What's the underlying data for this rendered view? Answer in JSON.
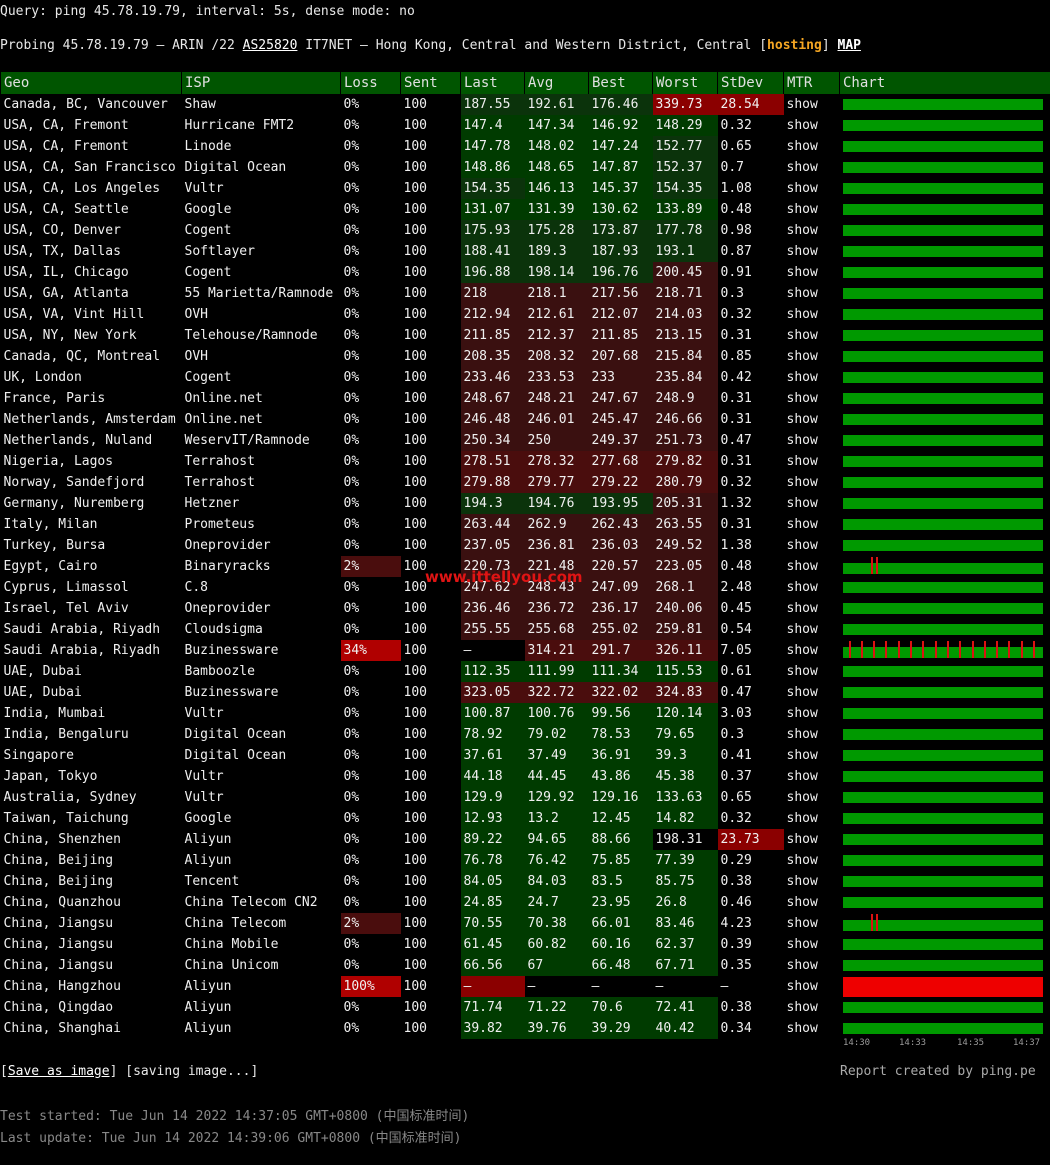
{
  "header": {
    "query": "Query: ping 45.78.19.79, interval: 5s, dense mode: no",
    "probe_prefix": "Probing 45.78.19.79 — ARIN /22 ",
    "asn": "AS25820",
    "probe_middle": " IT7NET — Hong Kong, Central and Western District, Central [",
    "tag": "hosting",
    "probe_close": "] ",
    "map_link": "MAP"
  },
  "columns": [
    "Geo",
    "ISP",
    "Loss",
    "Sent",
    "Last",
    "Avg",
    "Best",
    "Worst",
    "StDev",
    "MTR",
    "Chart"
  ],
  "rows": [
    {
      "geo": "Canada, BC, Vancouver",
      "isp": "Shaw",
      "loss": "0%",
      "sent": "100",
      "last": "187.55",
      "avg": "192.61",
      "best": "176.46",
      "worst": "339.73",
      "stdev": "28.54",
      "mtr": "show"
    },
    {
      "geo": "USA, CA, Fremont",
      "isp": "Hurricane FMT2",
      "loss": "0%",
      "sent": "100",
      "last": "147.4",
      "avg": "147.34",
      "best": "146.92",
      "worst": "148.29",
      "stdev": "0.32",
      "mtr": "show"
    },
    {
      "geo": "USA, CA, Fremont",
      "isp": "Linode",
      "loss": "0%",
      "sent": "100",
      "last": "147.78",
      "avg": "148.02",
      "best": "147.24",
      "worst": "152.77",
      "stdev": "0.65",
      "mtr": "show"
    },
    {
      "geo": "USA, CA, San Francisco",
      "isp": "Digital Ocean",
      "loss": "0%",
      "sent": "100",
      "last": "148.86",
      "avg": "148.65",
      "best": "147.87",
      "worst": "152.37",
      "stdev": "0.7",
      "mtr": "show"
    },
    {
      "geo": "USA, CA, Los Angeles",
      "isp": "Vultr",
      "loss": "0%",
      "sent": "100",
      "last": "154.35",
      "avg": "146.13",
      "best": "145.37",
      "worst": "154.35",
      "stdev": "1.08",
      "mtr": "show"
    },
    {
      "geo": "USA, CA, Seattle",
      "isp": "Google",
      "loss": "0%",
      "sent": "100",
      "last": "131.07",
      "avg": "131.39",
      "best": "130.62",
      "worst": "133.89",
      "stdev": "0.48",
      "mtr": "show"
    },
    {
      "geo": "USA, CO, Denver",
      "isp": "Cogent",
      "loss": "0%",
      "sent": "100",
      "last": "175.93",
      "avg": "175.28",
      "best": "173.87",
      "worst": "177.78",
      "stdev": "0.98",
      "mtr": "show"
    },
    {
      "geo": "USA, TX, Dallas",
      "isp": "Softlayer",
      "loss": "0%",
      "sent": "100",
      "last": "188.41",
      "avg": "189.3",
      "best": "187.93",
      "worst": "193.1",
      "stdev": "0.87",
      "mtr": "show"
    },
    {
      "geo": "USA, IL, Chicago",
      "isp": "Cogent",
      "loss": "0%",
      "sent": "100",
      "last": "196.88",
      "avg": "198.14",
      "best": "196.76",
      "worst": "200.45",
      "stdev": "0.91",
      "mtr": "show"
    },
    {
      "geo": "USA, GA, Atlanta",
      "isp": "55 Marietta/Ramnode",
      "loss": "0%",
      "sent": "100",
      "last": "218",
      "avg": "218.1",
      "best": "217.56",
      "worst": "218.71",
      "stdev": "0.3",
      "mtr": "show"
    },
    {
      "geo": "USA, VA, Vint Hill",
      "isp": "OVH",
      "loss": "0%",
      "sent": "100",
      "last": "212.94",
      "avg": "212.61",
      "best": "212.07",
      "worst": "214.03",
      "stdev": "0.32",
      "mtr": "show"
    },
    {
      "geo": "USA, NY, New York",
      "isp": "Telehouse/Ramnode",
      "loss": "0%",
      "sent": "100",
      "last": "211.85",
      "avg": "212.37",
      "best": "211.85",
      "worst": "213.15",
      "stdev": "0.31",
      "mtr": "show"
    },
    {
      "geo": "Canada, QC, Montreal",
      "isp": "OVH",
      "loss": "0%",
      "sent": "100",
      "last": "208.35",
      "avg": "208.32",
      "best": "207.68",
      "worst": "215.84",
      "stdev": "0.85",
      "mtr": "show"
    },
    {
      "geo": "UK, London",
      "isp": "Cogent",
      "loss": "0%",
      "sent": "100",
      "last": "233.46",
      "avg": "233.53",
      "best": "233",
      "worst": "235.84",
      "stdev": "0.42",
      "mtr": "show"
    },
    {
      "geo": "France, Paris",
      "isp": "Online.net",
      "loss": "0%",
      "sent": "100",
      "last": "248.67",
      "avg": "248.21",
      "best": "247.67",
      "worst": "248.9",
      "stdev": "0.31",
      "mtr": "show"
    },
    {
      "geo": "Netherlands, Amsterdam",
      "isp": "Online.net",
      "loss": "0%",
      "sent": "100",
      "last": "246.48",
      "avg": "246.01",
      "best": "245.47",
      "worst": "246.66",
      "stdev": "0.31",
      "mtr": "show"
    },
    {
      "geo": "Netherlands, Nuland",
      "isp": "WeservIT/Ramnode",
      "loss": "0%",
      "sent": "100",
      "last": "250.34",
      "avg": "250",
      "best": "249.37",
      "worst": "251.73",
      "stdev": "0.47",
      "mtr": "show"
    },
    {
      "geo": "Nigeria, Lagos",
      "isp": "Terrahost",
      "loss": "0%",
      "sent": "100",
      "last": "278.51",
      "avg": "278.32",
      "best": "277.68",
      "worst": "279.82",
      "stdev": "0.31",
      "mtr": "show"
    },
    {
      "geo": "Norway, Sandefjord",
      "isp": "Terrahost",
      "loss": "0%",
      "sent": "100",
      "last": "279.88",
      "avg": "279.77",
      "best": "279.22",
      "worst": "280.79",
      "stdev": "0.32",
      "mtr": "show"
    },
    {
      "geo": "Germany, Nuremberg",
      "isp": "Hetzner",
      "loss": "0%",
      "sent": "100",
      "last": "194.3",
      "avg": "194.76",
      "best": "193.95",
      "worst": "205.31",
      "stdev": "1.32",
      "mtr": "show"
    },
    {
      "geo": "Italy, Milan",
      "isp": "Prometeus",
      "loss": "0%",
      "sent": "100",
      "last": "263.44",
      "avg": "262.9",
      "best": "262.43",
      "worst": "263.55",
      "stdev": "0.31",
      "mtr": "show"
    },
    {
      "geo": "Turkey, Bursa",
      "isp": "Oneprovider",
      "loss": "0%",
      "sent": "100",
      "last": "237.05",
      "avg": "236.81",
      "best": "236.03",
      "worst": "249.52",
      "stdev": "1.38",
      "mtr": "show"
    },
    {
      "geo": "Egypt, Cairo",
      "isp": "Binaryracks",
      "loss": "2%",
      "sent": "100",
      "last": "220.73",
      "avg": "221.48",
      "best": "220.57",
      "worst": "223.05",
      "stdev": "0.48",
      "mtr": "show"
    },
    {
      "geo": "Cyprus, Limassol",
      "isp": "C.8",
      "loss": "0%",
      "sent": "100",
      "last": "247.62",
      "avg": "248.43",
      "best": "247.09",
      "worst": "268.1",
      "stdev": "2.48",
      "mtr": "show"
    },
    {
      "geo": "Israel, Tel Aviv",
      "isp": "Oneprovider",
      "loss": "0%",
      "sent": "100",
      "last": "236.46",
      "avg": "236.72",
      "best": "236.17",
      "worst": "240.06",
      "stdev": "0.45",
      "mtr": "show"
    },
    {
      "geo": "Saudi Arabia, Riyadh",
      "isp": "Cloudsigma",
      "loss": "0%",
      "sent": "100",
      "last": "255.55",
      "avg": "255.68",
      "best": "255.02",
      "worst": "259.81",
      "stdev": "0.54",
      "mtr": "show"
    },
    {
      "geo": "Saudi Arabia, Riyadh",
      "isp": "Buzinessware",
      "loss": "34%",
      "sent": "100",
      "last": "–",
      "avg": "314.21",
      "best": "291.7",
      "worst": "326.11",
      "stdev": "7.05",
      "mtr": "show"
    },
    {
      "geo": "UAE, Dubai",
      "isp": "Bamboozle",
      "loss": "0%",
      "sent": "100",
      "last": "112.35",
      "avg": "111.99",
      "best": "111.34",
      "worst": "115.53",
      "stdev": "0.61",
      "mtr": "show"
    },
    {
      "geo": "UAE, Dubai",
      "isp": "Buzinessware",
      "loss": "0%",
      "sent": "100",
      "last": "323.05",
      "avg": "322.72",
      "best": "322.02",
      "worst": "324.83",
      "stdev": "0.47",
      "mtr": "show"
    },
    {
      "geo": "India, Mumbai",
      "isp": "Vultr",
      "loss": "0%",
      "sent": "100",
      "last": "100.87",
      "avg": "100.76",
      "best": "99.56",
      "worst": "120.14",
      "stdev": "3.03",
      "mtr": "show"
    },
    {
      "geo": "India, Bengaluru",
      "isp": "Digital Ocean",
      "loss": "0%",
      "sent": "100",
      "last": "78.92",
      "avg": "79.02",
      "best": "78.53",
      "worst": "79.65",
      "stdev": "0.3",
      "mtr": "show"
    },
    {
      "geo": "Singapore",
      "isp": "Digital Ocean",
      "loss": "0%",
      "sent": "100",
      "last": "37.61",
      "avg": "37.49",
      "best": "36.91",
      "worst": "39.3",
      "stdev": "0.41",
      "mtr": "show"
    },
    {
      "geo": "Japan, Tokyo",
      "isp": "Vultr",
      "loss": "0%",
      "sent": "100",
      "last": "44.18",
      "avg": "44.45",
      "best": "43.86",
      "worst": "45.38",
      "stdev": "0.37",
      "mtr": "show"
    },
    {
      "geo": "Australia, Sydney",
      "isp": "Vultr",
      "loss": "0%",
      "sent": "100",
      "last": "129.9",
      "avg": "129.92",
      "best": "129.16",
      "worst": "133.63",
      "stdev": "0.65",
      "mtr": "show"
    },
    {
      "geo": "Taiwan, Taichung",
      "isp": "Google",
      "loss": "0%",
      "sent": "100",
      "last": "12.93",
      "avg": "13.2",
      "best": "12.45",
      "worst": "14.82",
      "stdev": "0.32",
      "mtr": "show"
    },
    {
      "geo": "China, Shenzhen",
      "isp": "Aliyun",
      "loss": "0%",
      "sent": "100",
      "last": "89.22",
      "avg": "94.65",
      "best": "88.66",
      "worst": "198.31",
      "stdev": "23.73",
      "mtr": "show"
    },
    {
      "geo": "China, Beijing",
      "isp": "Aliyun",
      "loss": "0%",
      "sent": "100",
      "last": "76.78",
      "avg": "76.42",
      "best": "75.85",
      "worst": "77.39",
      "stdev": "0.29",
      "mtr": "show"
    },
    {
      "geo": "China, Beijing",
      "isp": "Tencent",
      "loss": "0%",
      "sent": "100",
      "last": "84.05",
      "avg": "84.03",
      "best": "83.5",
      "worst": "85.75",
      "stdev": "0.38",
      "mtr": "show"
    },
    {
      "geo": "China, Quanzhou",
      "isp": "China Telecom CN2",
      "loss": "0%",
      "sent": "100",
      "last": "24.85",
      "avg": "24.7",
      "best": "23.95",
      "worst": "26.8",
      "stdev": "0.46",
      "mtr": "show"
    },
    {
      "geo": "China, Jiangsu",
      "isp": "China Telecom",
      "loss": "2%",
      "sent": "100",
      "last": "70.55",
      "avg": "70.38",
      "best": "66.01",
      "worst": "83.46",
      "stdev": "4.23",
      "mtr": "show"
    },
    {
      "geo": "China, Jiangsu",
      "isp": "China Mobile",
      "loss": "0%",
      "sent": "100",
      "last": "61.45",
      "avg": "60.82",
      "best": "60.16",
      "worst": "62.37",
      "stdev": "0.39",
      "mtr": "show"
    },
    {
      "geo": "China, Jiangsu",
      "isp": "China Unicom",
      "loss": "0%",
      "sent": "100",
      "last": "66.56",
      "avg": "67",
      "best": "66.48",
      "worst": "67.71",
      "stdev": "0.35",
      "mtr": "show"
    },
    {
      "geo": "China, Hangzhou",
      "isp": "Aliyun",
      "loss": "100%",
      "sent": "100",
      "last": "–",
      "avg": "–",
      "best": "–",
      "worst": "–",
      "stdev": "–",
      "mtr": "show"
    },
    {
      "geo": "China, Qingdao",
      "isp": "Aliyun",
      "loss": "0%",
      "sent": "100",
      "last": "71.74",
      "avg": "71.22",
      "best": "70.6",
      "worst": "72.41",
      "stdev": "0.38",
      "mtr": "show"
    },
    {
      "geo": "China, Shanghai",
      "isp": "Aliyun",
      "loss": "0%",
      "sent": "100",
      "last": "39.82",
      "avg": "39.76",
      "best": "39.29",
      "worst": "40.42",
      "stdev": "0.34",
      "mtr": "show"
    }
  ],
  "time_axis": [
    "14:30",
    "14:33",
    "14:35",
    "14:37"
  ],
  "footer": {
    "save_label": "Save as image",
    "saving_label": "saving image...",
    "report": "Report created by ping.pe",
    "test_started": "Test started: Tue Jun 14 2022 14:37:05 GMT+0800 (中国标准时间)",
    "last_update": "Last update: Tue Jun 14 2022 14:39:06 GMT+0800 (中国标准时间)"
  },
  "watermark": "www.ittellyou.com",
  "colors": {
    "header_bg": "#005500",
    "good_bar": "#009900",
    "loss_bar": "#ee0000",
    "mtr_link": "#1fbf1f",
    "tag": "#f5a623"
  }
}
